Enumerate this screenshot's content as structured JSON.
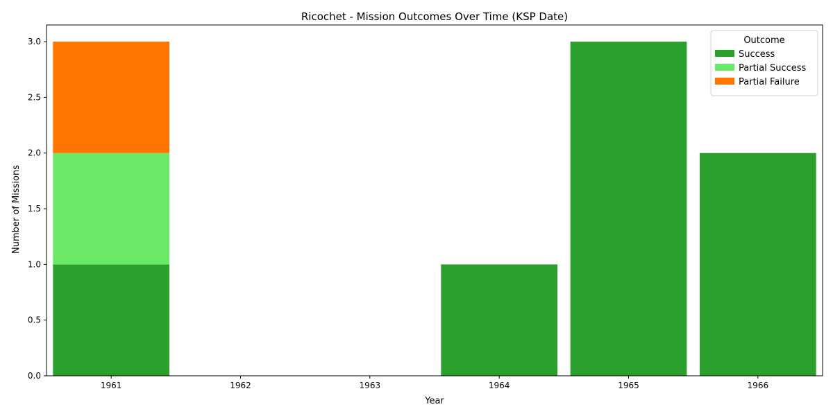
{
  "chart_data": {
    "type": "bar",
    "stacked": true,
    "title": "Ricochet - Mission Outcomes Over Time (KSP Date)",
    "xlabel": "Year",
    "ylabel": "Number of Missions",
    "categories": [
      "1961",
      "1962",
      "1963",
      "1964",
      "1965",
      "1966"
    ],
    "series": [
      {
        "name": "Success",
        "color": "#2ca02c",
        "values": [
          1,
          0,
          0,
          1,
          3,
          2
        ]
      },
      {
        "name": "Partial Success",
        "color": "#6ae968",
        "values": [
          1,
          0,
          0,
          0,
          0,
          0
        ]
      },
      {
        "name": "Partial Failure",
        "color": "#ff7500",
        "values": [
          1,
          0,
          0,
          0,
          0,
          0
        ]
      }
    ],
    "ylim": [
      0,
      3.15
    ],
    "yticks": [
      "0.0",
      "0.5",
      "1.0",
      "1.5",
      "2.0",
      "2.5",
      "3.0"
    ],
    "legend": {
      "title": "Outcome",
      "placement": "top-right"
    },
    "grid": false
  }
}
